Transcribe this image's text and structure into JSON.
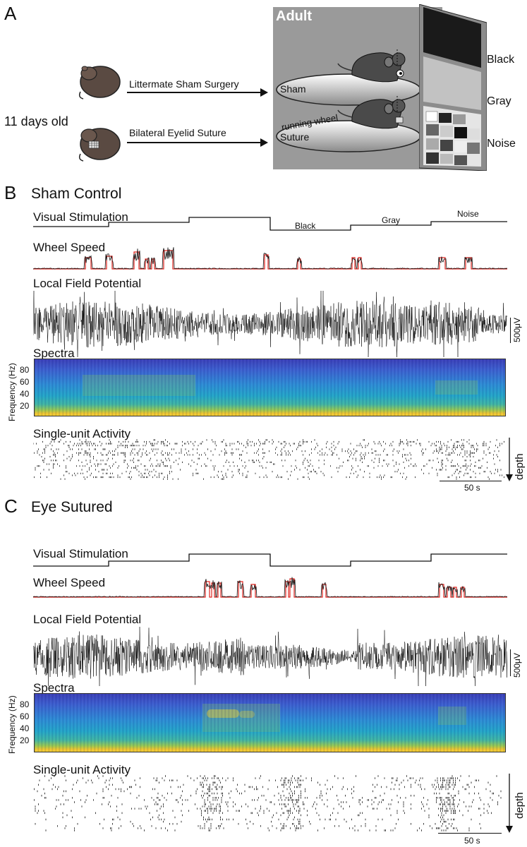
{
  "panel_a": {
    "letter": "A",
    "age_label": "11 days old",
    "arrow_top_label": "Littermate Sham Surgery",
    "arrow_bottom_label": "Bilateral Eyelid Suture",
    "box_title": "Adult",
    "platform_top_label": "Sham",
    "platform_bottom_label": "Suture",
    "wheel_label": "running wheel",
    "screen_labels": [
      "Black",
      "Gray",
      "Noise"
    ],
    "colors": {
      "box_bg": "#9a9a9a",
      "mouse": "#4a4a4a",
      "screen_black": "#1a1a1a",
      "screen_gray": "#c2c2c2"
    }
  },
  "panel_b": {
    "letter": "B",
    "title": "Sham Control",
    "visual_label": "Visual Stimulation",
    "stimulus_labels": [
      "Black",
      "Gray",
      "Noise"
    ],
    "wheel_label": "Wheel Speed",
    "lfp_label": "Local Field Potential",
    "lfp_scale": "500μV",
    "spectra_label": "Spectra",
    "spectra_ylabel": "Frequency (Hz)",
    "spectra_ticks": [
      "80",
      "60",
      "40",
      "20"
    ],
    "units_label": "Single-unit Activity",
    "depth_label": "depth",
    "time_scale": "50 s"
  },
  "panel_c": {
    "letter": "C",
    "title": "Eye Sutured",
    "visual_label": "Visual Stimulation",
    "wheel_label": "Wheel Speed",
    "lfp_label": "Local Field Potential",
    "lfp_scale": "500μV",
    "spectra_label": "Spectra",
    "spectra_ylabel": "Frequency (Hz)",
    "spectra_ticks": [
      "80",
      "60",
      "40",
      "20"
    ],
    "units_label": "Single-unit Activity",
    "depth_label": "depth",
    "time_scale": "50 s"
  },
  "colors": {
    "wheel_binary": "#e0241f",
    "trace": "#111111"
  }
}
